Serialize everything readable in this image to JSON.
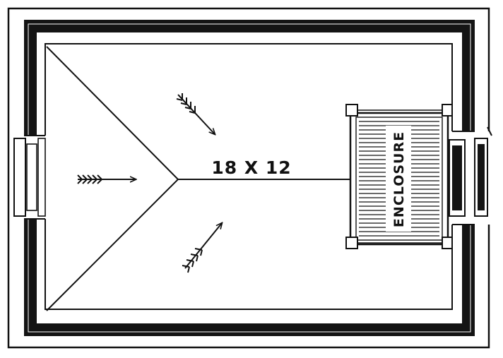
{
  "plan": {
    "dimensions_label": "18 X 12",
    "enclosure_label": "ENCLOSURE"
  },
  "colors": {
    "ink": "#111111",
    "paper": "#ffffff"
  }
}
